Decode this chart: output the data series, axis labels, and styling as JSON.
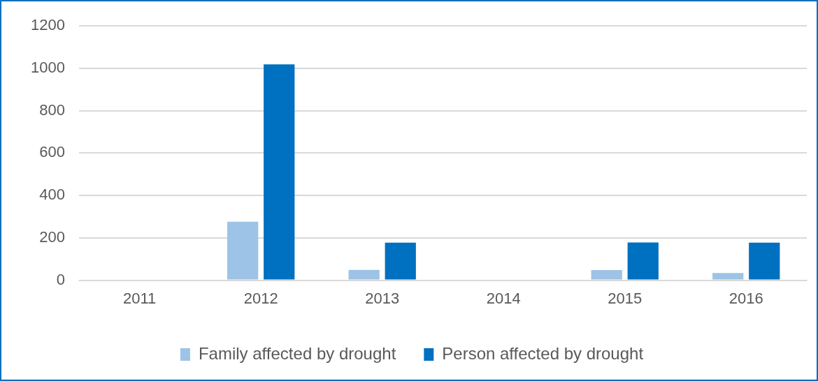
{
  "chart_data": {
    "type": "bar",
    "categories": [
      "2011",
      "2012",
      "2013",
      "2014",
      "2015",
      "2016"
    ],
    "series": [
      {
        "name": "Family affected by drought",
        "color": "#9dc3e6",
        "values": [
          0,
          276,
          49,
          0,
          48,
          34
        ]
      },
      {
        "name": "Person affected by drought",
        "color": "#0070c0",
        "values": [
          0,
          1019,
          177,
          0,
          178,
          177
        ]
      }
    ],
    "ylim": [
      0,
      1200
    ],
    "yticks": [
      0,
      200,
      400,
      600,
      800,
      1000,
      1200
    ],
    "grid": "y",
    "legend": "bottom"
  }
}
